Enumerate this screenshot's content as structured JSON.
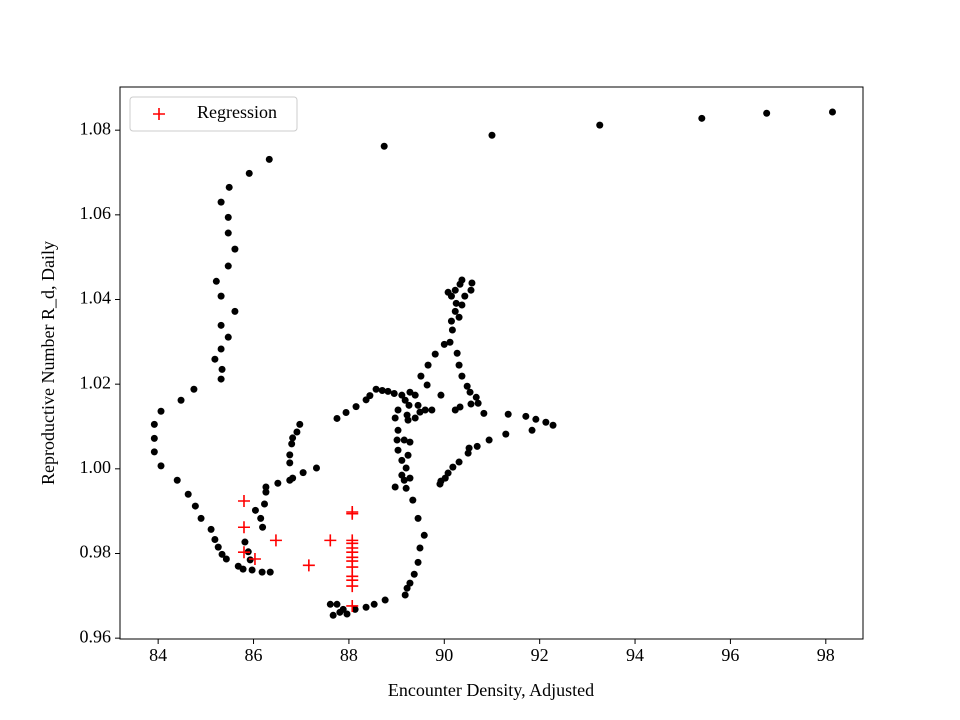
{
  "chart_data": {
    "type": "scatter",
    "xlabel": "Encounter Density, Adjusted",
    "ylabel": "Reproductive Number R_d, Daily",
    "xlim": [
      83.2,
      98.78
    ],
    "ylim": [
      0.9598,
      1.0902
    ],
    "xticks": [
      84,
      86,
      88,
      90,
      92,
      94,
      96,
      98
    ],
    "yticks": [
      0.96,
      0.98,
      {
        "value": 1,
        "label": "1.00"
      },
      1.02,
      1.04,
      1.06,
      1.08
    ],
    "legend": "upper left",
    "series": [
      {
        "color": "#000000",
        "marker": "dot",
        "x": [
          98.14,
          96.76,
          95.4,
          93.26,
          91.0,
          88.74,
          86.33,
          85.91,
          85.49,
          85.32,
          85.47,
          85.47,
          85.61,
          85.47,
          85.22,
          85.32,
          85.61,
          85.32,
          85.47,
          85.32,
          85.19,
          85.34,
          85.32,
          84.75,
          84.48,
          84.06,
          83.92,
          83.92,
          83.92,
          84.06,
          84.4,
          84.63,
          84.78,
          84.9,
          85.11,
          85.19,
          85.26,
          85.34,
          85.43,
          85.68,
          85.78,
          85.97,
          86.18,
          86.35,
          85.82,
          85.89,
          85.93,
          86.04,
          86.15,
          86.19,
          86.23,
          86.26,
          86.26,
          86.51,
          86.76,
          86.82,
          87.04,
          87.32,
          86.76,
          86.76,
          86.8,
          86.82,
          86.91,
          86.97,
          87.75,
          87.94,
          88.15,
          88.36,
          88.44,
          88.57,
          88.7,
          88.82,
          88.95,
          89.11,
          89.18,
          89.28,
          89.39,
          89.26,
          89.03,
          89.22,
          89.39,
          89.45,
          89.49,
          89.6,
          89.74,
          88.97,
          89.24,
          89.03,
          89.01,
          89.16,
          89.28,
          89.03,
          89.24,
          89.11,
          89.2,
          89.11,
          89.28,
          89.16,
          89.2,
          88.97,
          89.34,
          89.45,
          89.58,
          89.49,
          89.45,
          89.37,
          89.28,
          89.22,
          89.18,
          88.76,
          88.53,
          88.36,
          88.13,
          87.88,
          87.61,
          87.75,
          87.67,
          87.81,
          87.96,
          89.93,
          89.64,
          89.51,
          89.66,
          89.81,
          90.0,
          90.12,
          90.17,
          90.15,
          90.23,
          90.25,
          90.15,
          90.08,
          90.23,
          90.33,
          90.37,
          90.58,
          90.56,
          90.43,
          90.37,
          90.31,
          90.27,
          90.31,
          90.37,
          90.48,
          90.54,
          90.67,
          90.71,
          90.56,
          90.33,
          90.23,
          90.83,
          91.34,
          91.71,
          91.92,
          92.13,
          92.28,
          91.84,
          91.29,
          90.94,
          90.69,
          90.52,
          90.5,
          90.31,
          90.18,
          90.08,
          90.02,
          89.93,
          89.91
        ],
        "values": [
          1.0843,
          1.084,
          1.0828,
          1.0812,
          1.0788,
          1.0762,
          1.0731,
          1.0698,
          1.0665,
          1.063,
          1.0594,
          1.0557,
          1.0519,
          1.0479,
          1.0443,
          1.0408,
          1.0372,
          1.0339,
          1.0311,
          1.0283,
          1.0259,
          1.0235,
          1.0212,
          1.0188,
          1.0162,
          1.0136,
          1.0105,
          1.0072,
          1.004,
          1.0007,
          0.9973,
          0.994,
          0.9912,
          0.9883,
          0.9857,
          0.9833,
          0.9815,
          0.9798,
          0.9787,
          0.977,
          0.9763,
          0.9761,
          0.9756,
          0.9756,
          0.9827,
          0.9804,
          0.9785,
          0.9902,
          0.9883,
          0.9862,
          0.9917,
          0.9945,
          0.9957,
          0.9966,
          0.9973,
          0.9978,
          0.9991,
          1.0002,
          1.0014,
          1.0033,
          1.0059,
          1.0073,
          1.0087,
          1.0105,
          1.0119,
          1.0133,
          1.0147,
          1.0163,
          1.0173,
          1.0188,
          1.0185,
          1.0183,
          1.0178,
          1.0174,
          1.0162,
          1.0181,
          1.0174,
          1.015,
          1.0139,
          1.0127,
          1.012,
          1.015,
          1.0134,
          1.0139,
          1.0139,
          1.012,
          1.0115,
          1.0091,
          1.0068,
          1.0068,
          1.0063,
          1.0044,
          1.0032,
          1.002,
          1.0002,
          0.9985,
          0.9978,
          0.9973,
          0.9954,
          0.9957,
          0.9926,
          0.9883,
          0.9843,
          0.9813,
          0.9779,
          0.9751,
          0.973,
          0.9718,
          0.9702,
          0.969,
          0.968,
          0.9673,
          0.9668,
          0.9668,
          0.968,
          0.968,
          0.9654,
          0.9661,
          0.9657,
          1.0174,
          1.0198,
          1.0219,
          1.0245,
          1.0271,
          1.0294,
          1.0299,
          1.0328,
          1.0349,
          1.0372,
          1.0391,
          1.0408,
          1.0417,
          1.0422,
          1.0436,
          1.0446,
          1.0439,
          1.0422,
          1.0408,
          1.0387,
          1.0358,
          1.0273,
          1.0245,
          1.0219,
          1.0195,
          1.0181,
          1.0169,
          1.0155,
          1.0153,
          1.0146,
          1.0139,
          1.0131,
          1.0129,
          1.0124,
          1.0117,
          1.011,
          1.0103,
          1.0091,
          1.0082,
          1.0068,
          1.0053,
          1.0049,
          1.0037,
          1.0016,
          1.0004,
          0.999,
          0.9978,
          0.9971,
          0.9964
        ]
      },
      {
        "name": "Regression",
        "color": "#ff0000",
        "marker": "plus",
        "x": [
          85.8,
          85.8,
          85.8,
          86.03,
          86.47,
          87.16,
          87.61,
          88.07,
          88.07,
          88.07,
          88.07,
          88.07,
          88.07,
          88.07,
          88.07,
          88.07,
          88.07,
          88.07,
          88.07,
          88.07
        ],
        "values": [
          0.9924,
          0.9862,
          0.9803,
          0.9787,
          0.9831,
          0.9772,
          0.9831,
          0.9898,
          0.9894,
          0.9831,
          0.9824,
          0.9813,
          0.9803,
          0.9791,
          0.9782,
          0.9768,
          0.9746,
          0.9737,
          0.9723,
          0.9676
        ]
      }
    ]
  }
}
